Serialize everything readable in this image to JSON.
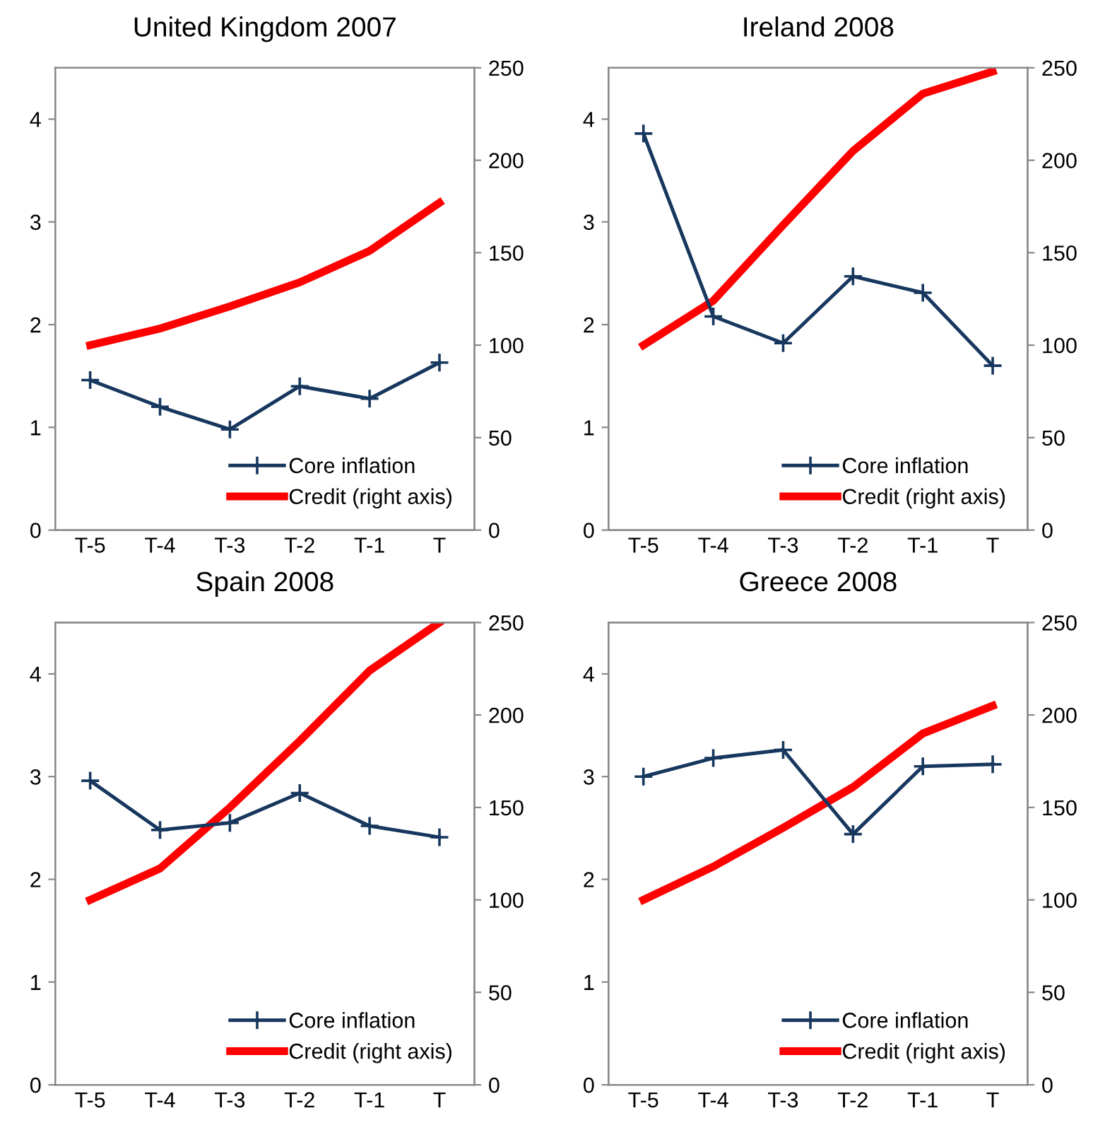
{
  "chart_data": [
    {
      "type": "line",
      "title": "United Kingdom 2007",
      "categories": [
        "T-5",
        "T-4",
        "T-3",
        "T-2",
        "T-1",
        "T"
      ],
      "ylim": [
        0,
        4.5
      ],
      "yticks": [
        0,
        1,
        2,
        3,
        4
      ],
      "y2lim": [
        0,
        250
      ],
      "y2ticks": [
        0,
        50,
        100,
        150,
        200,
        250
      ],
      "legend": "bottom right",
      "grid": false,
      "series": [
        {
          "name": "Core inflation",
          "color": "#17375e",
          "marker": "cross",
          "values": [
            1.46,
            1.2,
            0.98,
            1.4,
            1.28,
            1.63
          ]
        },
        {
          "name": "Credit (right axis)",
          "color": "#ff0000",
          "axis": "y2",
          "marker": "none",
          "values": [
            100,
            109,
            121,
            134,
            151,
            177
          ]
        }
      ]
    },
    {
      "type": "line",
      "title": "Ireland 2008",
      "categories": [
        "T-5",
        "T-4",
        "T-3",
        "T-2",
        "T-1",
        "T"
      ],
      "ylim": [
        0,
        4.5
      ],
      "yticks": [
        0,
        1,
        2,
        3,
        4
      ],
      "y2lim": [
        0,
        250
      ],
      "y2ticks": [
        0,
        50,
        100,
        150,
        200,
        250
      ],
      "legend": "bottom right",
      "grid": false,
      "series": [
        {
          "name": "Core inflation",
          "color": "#17375e",
          "marker": "cross",
          "values": [
            3.86,
            2.08,
            1.82,
            2.47,
            2.31,
            1.6
          ]
        },
        {
          "name": "Credit (right axis)",
          "color": "#ff0000",
          "axis": "y2",
          "marker": "none",
          "values": [
            100,
            124,
            165,
            205,
            236,
            248
          ]
        }
      ]
    },
    {
      "type": "line",
      "title": "Spain 2008",
      "categories": [
        "T-5",
        "T-4",
        "T-3",
        "T-2",
        "T-1",
        "T"
      ],
      "ylim": [
        0,
        4.5
      ],
      "yticks": [
        0,
        1,
        2,
        3,
        4
      ],
      "y2lim": [
        0,
        250
      ],
      "y2ticks": [
        0,
        50,
        100,
        150,
        200,
        250
      ],
      "legend": "bottom right",
      "grid": false,
      "series": [
        {
          "name": "Core inflation",
          "color": "#17375e",
          "marker": "cross",
          "values": [
            2.96,
            2.48,
            2.55,
            2.84,
            2.52,
            2.41
          ]
        },
        {
          "name": "Credit (right axis)",
          "color": "#ff0000",
          "axis": "y2",
          "marker": "none",
          "values": [
            100,
            117,
            150,
            186,
            224,
            250
          ]
        }
      ]
    },
    {
      "type": "line",
      "title": "Greece 2008",
      "categories": [
        "T-5",
        "T-4",
        "T-3",
        "T-2",
        "T-1",
        "T"
      ],
      "ylim": [
        0,
        4.5
      ],
      "yticks": [
        0,
        1,
        2,
        3,
        4
      ],
      "y2lim": [
        0,
        250
      ],
      "y2ticks": [
        0,
        50,
        100,
        150,
        200,
        250
      ],
      "legend": "bottom right",
      "grid": false,
      "series": [
        {
          "name": "Core inflation",
          "color": "#17375e",
          "marker": "cross",
          "values": [
            3.0,
            3.18,
            3.26,
            2.44,
            3.1,
            3.12
          ]
        },
        {
          "name": "Credit (right axis)",
          "color": "#ff0000",
          "axis": "y2",
          "marker": "none",
          "values": [
            100,
            118,
            139,
            161,
            190,
            205
          ]
        }
      ]
    }
  ]
}
